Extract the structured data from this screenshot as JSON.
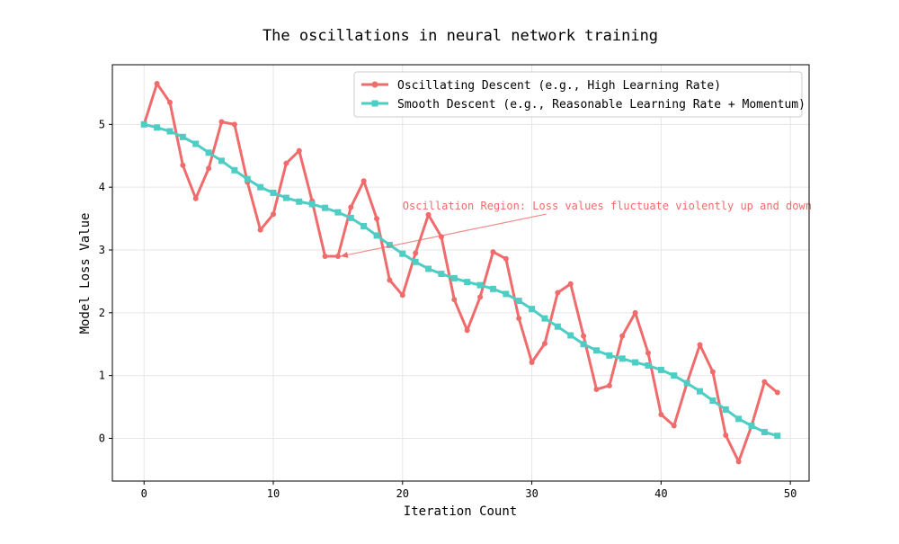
{
  "chart_data": {
    "type": "line",
    "title": "The oscillations in neural network training",
    "xlabel": "Iteration Count",
    "ylabel": "Model Loss Value",
    "xlim": [
      -2.45,
      51.45
    ],
    "ylim": [
      -0.68,
      5.95
    ],
    "xticks": [
      0,
      10,
      20,
      30,
      40,
      50
    ],
    "yticks": [
      0,
      1,
      2,
      3,
      4,
      5
    ],
    "grid": true,
    "legend_position": "upper-right",
    "x": [
      0,
      1,
      2,
      3,
      4,
      5,
      6,
      7,
      8,
      9,
      10,
      11,
      12,
      13,
      14,
      15,
      16,
      17,
      18,
      19,
      20,
      21,
      22,
      23,
      24,
      25,
      26,
      27,
      28,
      29,
      30,
      31,
      32,
      33,
      34,
      35,
      36,
      37,
      38,
      39,
      40,
      41,
      42,
      43,
      44,
      45,
      46,
      47,
      48,
      49
    ],
    "series": [
      {
        "name": "Oscillating Descent (e.g., High Learning Rate)",
        "color": "#f06b6b",
        "marker": "circle",
        "values": [
          5.0,
          5.65,
          5.35,
          4.35,
          3.82,
          4.3,
          5.04,
          5.0,
          4.08,
          3.32,
          3.57,
          4.38,
          4.58,
          3.78,
          2.9,
          2.9,
          3.68,
          4.1,
          3.5,
          2.52,
          2.28,
          2.95,
          3.56,
          3.21,
          2.21,
          1.72,
          2.25,
          2.97,
          2.86,
          1.91,
          1.21,
          1.51,
          2.32,
          2.46,
          1.63,
          0.78,
          0.84,
          1.63,
          2.0,
          1.36,
          0.38,
          0.2,
          0.88,
          1.49,
          1.06,
          0.05,
          -0.37,
          0.2,
          0.9,
          0.73
        ]
      },
      {
        "name": "Smooth Descent (e.g., Reasonable Learning Rate + Momentum)",
        "color": "#4ecdc4",
        "marker": "square",
        "values": [
          5.0,
          4.95,
          4.89,
          4.8,
          4.69,
          4.55,
          4.42,
          4.27,
          4.13,
          4.0,
          3.91,
          3.83,
          3.77,
          3.73,
          3.67,
          3.6,
          3.51,
          3.38,
          3.23,
          3.08,
          2.94,
          2.81,
          2.7,
          2.62,
          2.55,
          2.49,
          2.44,
          2.38,
          2.3,
          2.19,
          2.06,
          1.91,
          1.78,
          1.64,
          1.5,
          1.4,
          1.32,
          1.27,
          1.21,
          1.16,
          1.09,
          1.0,
          0.88,
          0.75,
          0.6,
          0.46,
          0.31,
          0.2,
          0.1,
          0.04
        ]
      }
    ],
    "annotation": {
      "text": "Oscillation Region: Loss values fluctuate violently up and down",
      "color": "#f06b6b",
      "target_x": 15,
      "target_y": 2.9,
      "text_x": 20,
      "text_y": 3.5
    }
  }
}
